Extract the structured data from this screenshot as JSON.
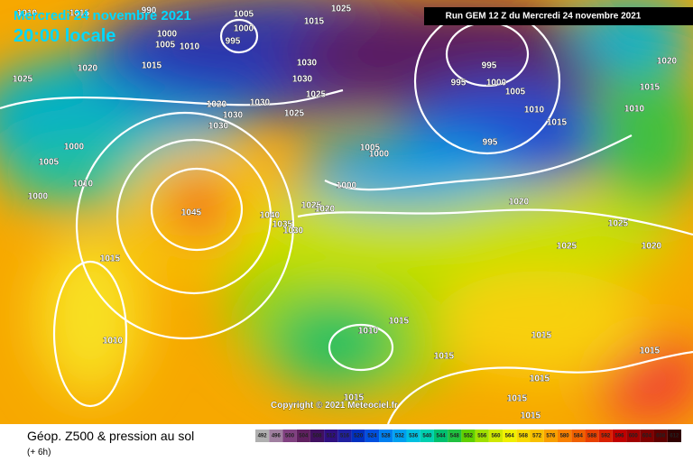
{
  "header": {
    "date": "Mercredi 24 novembre 2021",
    "time": "20:00 locale",
    "run": "Run GEM 12 Z du Mercredi 24 novembre 2021"
  },
  "copyright": "Copyright © 2021 Meteociel.fr",
  "footer": {
    "title": "Géop. Z500 & pression au sol",
    "lead": "(+ 6h)"
  },
  "legend": {
    "ticks": [
      492,
      496,
      500,
      504,
      508,
      512,
      516,
      520,
      524,
      528,
      532,
      536,
      540,
      544,
      548,
      552,
      556,
      560,
      564,
      568,
      572,
      576,
      580,
      584,
      588,
      592,
      596,
      600,
      604,
      608,
      612
    ]
  },
  "isobar_labels": [
    "1010",
    "1015",
    "990",
    "1005",
    "1000",
    "995",
    "1000",
    "1005",
    "1010",
    "1015",
    "1020",
    "1025",
    "1015",
    "1025",
    "1030",
    "1030",
    "1025",
    "1020",
    "1030",
    "1030",
    "1030",
    "1025",
    "995",
    "995",
    "1000",
    "1005",
    "1010",
    "1015",
    "995",
    "1005",
    "1000",
    "1000",
    "1020",
    "1025",
    "1020",
    "1040",
    "1035",
    "1030",
    "1045",
    "1000",
    "1005",
    "1010",
    "1000",
    "1015",
    "1010",
    "1020",
    "1015",
    "1010",
    "1025",
    "1025",
    "1020",
    "1015",
    "1010",
    "1015",
    "1015",
    "1015",
    "1015",
    "1015",
    "1015",
    "1015"
  ]
}
